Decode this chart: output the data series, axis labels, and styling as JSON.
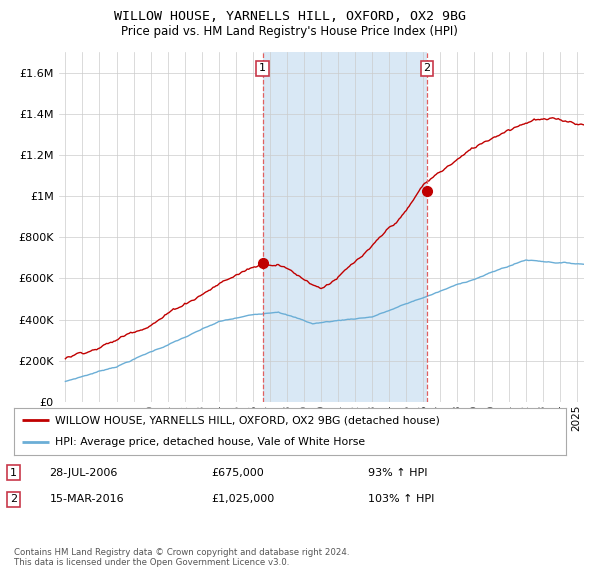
{
  "title": "WILLOW HOUSE, YARNELLS HILL, OXFORD, OX2 9BG",
  "subtitle": "Price paid vs. HM Land Registry's House Price Index (HPI)",
  "ylabel_ticks": [
    "£0",
    "£200K",
    "£400K",
    "£600K",
    "£800K",
    "£1M",
    "£1.2M",
    "£1.4M",
    "£1.6M"
  ],
  "ytick_vals": [
    0,
    200000,
    400000,
    600000,
    800000,
    1000000,
    1200000,
    1400000,
    1600000
  ],
  "ylim": [
    0,
    1700000
  ],
  "xlim_start": 1994.6,
  "xlim_end": 2025.4,
  "purchase1_x": 2006.57,
  "purchase1_y": 675000,
  "purchase2_x": 2016.21,
  "purchase2_y": 1025000,
  "hpi_color": "#6baed6",
  "price_color": "#c00000",
  "vline_color": "#e06060",
  "highlight_color": "#d9e8f5",
  "plot_bg": "#ffffff",
  "grid_color": "#cccccc",
  "legend_label_red": "WILLOW HOUSE, YARNELLS HILL, OXFORD, OX2 9BG (detached house)",
  "legend_label_blue": "HPI: Average price, detached house, Vale of White Horse",
  "purchase1_date": "28-JUL-2006",
  "purchase1_price": "£675,000",
  "purchase1_hpi": "93% ↑ HPI",
  "purchase2_date": "15-MAR-2016",
  "purchase2_price": "£1,025,000",
  "purchase2_hpi": "103% ↑ HPI",
  "footer": "Contains HM Land Registry data © Crown copyright and database right 2024.\nThis data is licensed under the Open Government Licence v3.0."
}
